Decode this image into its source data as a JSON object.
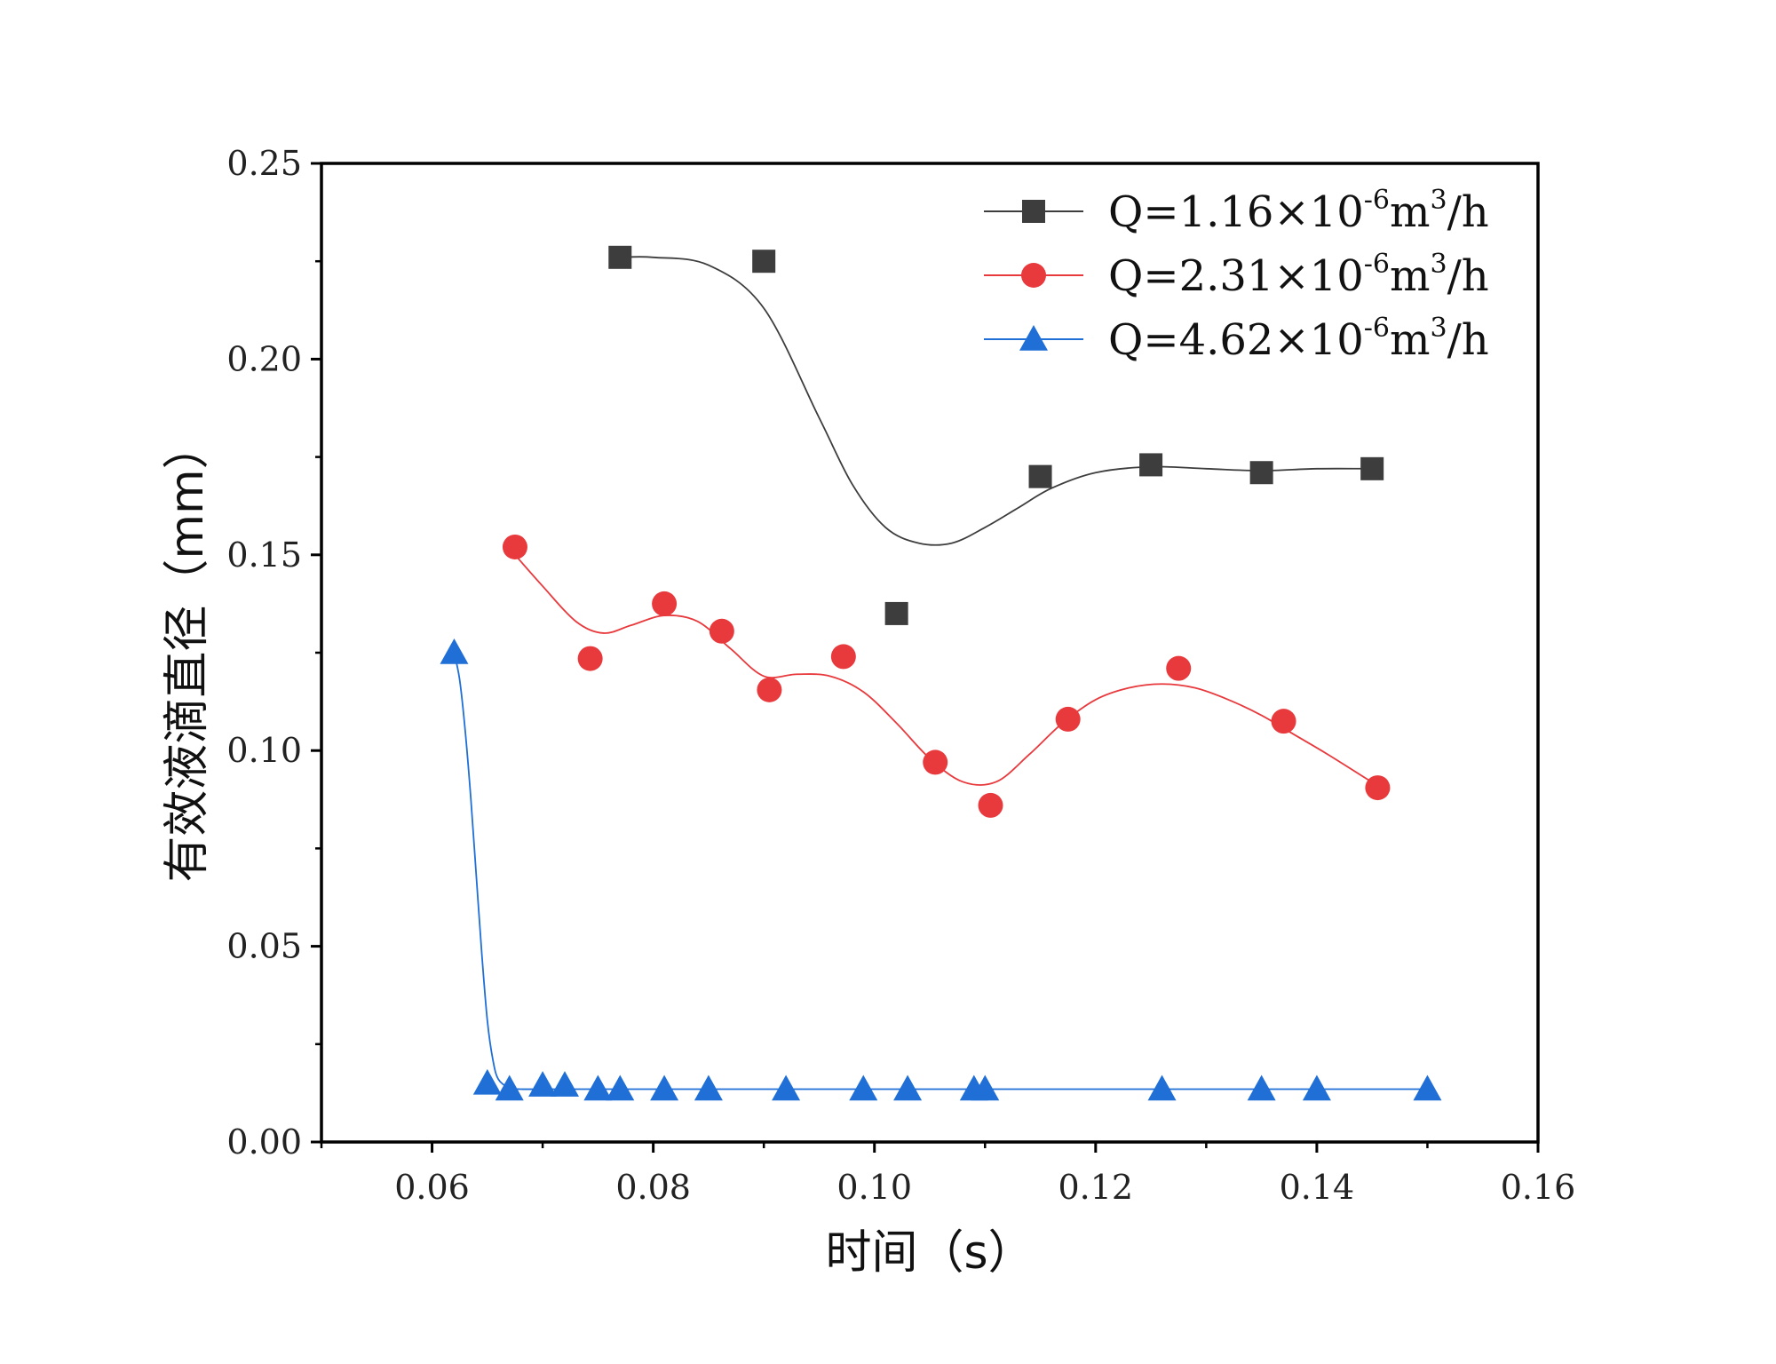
{
  "chart_data": {
    "type": "scatter",
    "xlabel": "时间（s）",
    "ylabel": "有效液滴直径（mm）",
    "xlim": [
      0.05,
      0.16
    ],
    "ylim": [
      0.0,
      0.25
    ],
    "x_ticks": [
      "0.06",
      "0.08",
      "0.10",
      "0.12",
      "0.14",
      "0.16"
    ],
    "y_ticks": [
      "0.00",
      "0.05",
      "0.10",
      "0.15",
      "0.20",
      "0.25"
    ],
    "x_tick_values": [
      0.06,
      0.08,
      0.1,
      0.12,
      0.14,
      0.16
    ],
    "y_tick_values": [
      0.0,
      0.05,
      0.1,
      0.15,
      0.2,
      0.25
    ],
    "grid": false,
    "legend_position": "top-right",
    "series": [
      {
        "name_parts": [
          "Q=1.16×10",
          "-6",
          "m",
          "3",
          "/h"
        ],
        "color": "#3d3d3d",
        "marker": "square",
        "x": [
          0.077,
          0.09,
          0.102,
          0.115,
          0.125,
          0.135,
          0.145
        ],
        "y": [
          0.226,
          0.225,
          0.135,
          0.17,
          0.173,
          0.171,
          0.172
        ],
        "fit_x": [
          0.077,
          0.08,
          0.085,
          0.09,
          0.095,
          0.098,
          0.101,
          0.104,
          0.107,
          0.11,
          0.113,
          0.116,
          0.12,
          0.125,
          0.13,
          0.135,
          0.14,
          0.145
        ],
        "fit_y": [
          0.226,
          0.226,
          0.224,
          0.213,
          0.185,
          0.168,
          0.157,
          0.153,
          0.153,
          0.157,
          0.162,
          0.167,
          0.171,
          0.1725,
          0.172,
          0.1715,
          0.172,
          0.172
        ]
      },
      {
        "name_parts": [
          "Q=2.31×10",
          "-6",
          "m",
          "3",
          "/h"
        ],
        "color": "#e8393d",
        "marker": "circle",
        "x": [
          0.0675,
          0.0743,
          0.081,
          0.0862,
          0.0905,
          0.0972,
          0.1055,
          0.1105,
          0.1175,
          0.1275,
          0.137,
          0.1455
        ],
        "y": [
          0.152,
          0.1235,
          0.1375,
          0.1305,
          0.1155,
          0.124,
          0.097,
          0.086,
          0.108,
          0.121,
          0.1075,
          0.0905
        ],
        "fit_x": [
          0.0675,
          0.07,
          0.073,
          0.0755,
          0.078,
          0.081,
          0.084,
          0.087,
          0.09,
          0.093,
          0.096,
          0.099,
          0.102,
          0.105,
          0.108,
          0.111,
          0.114,
          0.117,
          0.12,
          0.123,
          0.126,
          0.129,
          0.132,
          0.135,
          0.138,
          0.141,
          0.1455
        ],
        "fit_y": [
          0.15,
          0.142,
          0.133,
          0.13,
          0.132,
          0.1345,
          0.133,
          0.126,
          0.119,
          0.1195,
          0.119,
          0.115,
          0.107,
          0.098,
          0.092,
          0.092,
          0.099,
          0.107,
          0.113,
          0.116,
          0.117,
          0.116,
          0.113,
          0.109,
          0.104,
          0.099,
          0.091
        ]
      },
      {
        "name_parts": [
          "Q=4.62×10",
          "-6",
          "m",
          "3",
          "/h"
        ],
        "color": "#1f6fd6",
        "marker": "triangle",
        "x": [
          0.062,
          0.065,
          0.067,
          0.07,
          0.072,
          0.075,
          0.077,
          0.081,
          0.085,
          0.092,
          0.099,
          0.103,
          0.109,
          0.11,
          0.126,
          0.135,
          0.14,
          0.15
        ],
        "y": [
          0.125,
          0.015,
          0.0135,
          0.0145,
          0.0145,
          0.0135,
          0.0135,
          0.0135,
          0.0135,
          0.0135,
          0.0135,
          0.0135,
          0.0135,
          0.0135,
          0.0135,
          0.0135,
          0.0135,
          0.0135
        ],
        "fit_x": [
          0.062,
          0.0625,
          0.063,
          0.0635,
          0.064,
          0.0645,
          0.065,
          0.0655,
          0.066,
          0.067,
          0.068,
          0.07,
          0.075,
          0.08,
          0.09,
          0.1,
          0.11,
          0.12,
          0.13,
          0.14,
          0.15
        ],
        "fit_y": [
          0.125,
          0.118,
          0.105,
          0.088,
          0.068,
          0.048,
          0.031,
          0.021,
          0.016,
          0.0138,
          0.0135,
          0.0135,
          0.0135,
          0.0135,
          0.0135,
          0.0135,
          0.0135,
          0.0135,
          0.0135,
          0.0135,
          0.0135
        ]
      }
    ]
  }
}
